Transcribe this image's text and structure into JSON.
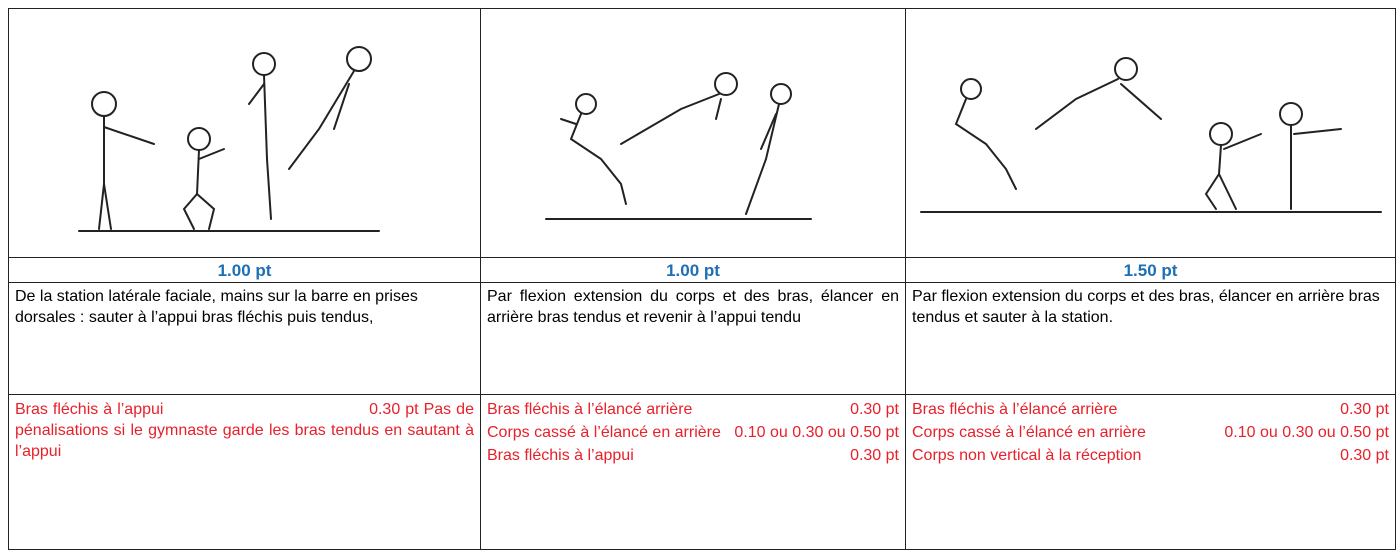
{
  "table": {
    "columns": [
      {
        "points": "1.00 pt",
        "description": "De la station latérale faciale, mains sur la barre en prises  dorsales : sauter à l’appui bras fléchis puis tendus,",
        "penalties": [
          {
            "text": "Bras fléchis à l’appui",
            "points": "0.30 pt",
            "note": "Pas de pénalisations si le gymnaste garde les bras tendus  en sautant à l’appui"
          }
        ]
      },
      {
        "points": "1.00 pt",
        "description": "Par flexion extension du corps et des bras, élancer en arrière bras tendus et revenir à l’appui tendu",
        "penalties": [
          {
            "text": "Bras fléchis à l’élancé arrière",
            "points": "0.30 pt"
          },
          {
            "text": "Corps cassé à l’élancé en arrière",
            "points": "0.10 ou 0.30 ou 0.50 pt"
          },
          {
            "text": "Bras fléchis à l’appui",
            "points": "0.30 pt"
          }
        ]
      },
      {
        "points": "1.50 pt",
        "description": "Par flexion extension du corps et des bras, élancer en arrière  bras tendus et sauter  à la station.",
        "penalties": [
          {
            "text": "Bras fléchis à l’élancé arrière",
            "points": "0.30 pt"
          },
          {
            "text": "Corps cassé à l’élancé en arrière",
            "points": "0.10 ou 0.30 ou 0.50 pt"
          },
          {
            "text": "Corps non vertical à la réception",
            "points": "0.30 pt"
          }
        ]
      }
    ]
  }
}
